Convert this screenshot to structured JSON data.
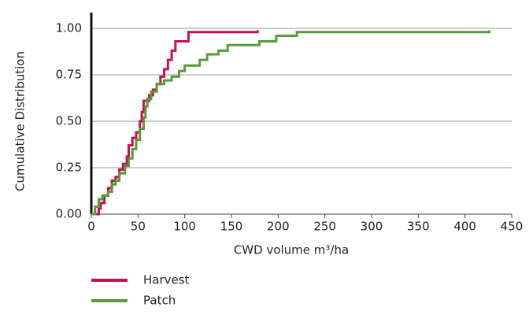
{
  "chart_data": {
    "type": "step",
    "xlabel": "CWD volume m³/ha",
    "ylabel": "Cumulative Distribution",
    "xlim": [
      0,
      450
    ],
    "ylim": [
      0,
      1
    ],
    "xticks": [
      0,
      50,
      100,
      150,
      200,
      250,
      300,
      350,
      400,
      450
    ],
    "yticks": [
      {
        "value": 0,
        "label": "0.00"
      },
      {
        "value": 0.25,
        "label": "0.25"
      },
      {
        "value": 0.5,
        "label": "0.50"
      },
      {
        "value": 0.75,
        "label": "0.75"
      },
      {
        "value": 1,
        "label": "1.00"
      }
    ],
    "grid": true,
    "legend": "bottom-left",
    "series": [
      {
        "name": "Harvest",
        "color": "#c8104e",
        "x": [
          2,
          8,
          10,
          14,
          18,
          22,
          26,
          30,
          34,
          38,
          40,
          44,
          48,
          52,
          54,
          56,
          62,
          66,
          70,
          74,
          78,
          82,
          86,
          90,
          104,
          178
        ],
        "values": [
          0,
          0.03,
          0.06,
          0.1,
          0.14,
          0.18,
          0.2,
          0.24,
          0.27,
          0.31,
          0.37,
          0.41,
          0.44,
          0.5,
          0.55,
          0.61,
          0.64,
          0.67,
          0.7,
          0.74,
          0.78,
          0.83,
          0.88,
          0.93,
          0.98,
          0.99
        ]
      },
      {
        "name": "Patch",
        "color": "#5a9a3c",
        "x": [
          0,
          4,
          8,
          12,
          18,
          22,
          26,
          30,
          36,
          40,
          44,
          48,
          52,
          56,
          58,
          60,
          64,
          70,
          78,
          86,
          94,
          100,
          116,
          124,
          136,
          146,
          180,
          198,
          220,
          426
        ],
        "values": [
          0,
          0.04,
          0.08,
          0.1,
          0.12,
          0.16,
          0.18,
          0.22,
          0.26,
          0.3,
          0.35,
          0.4,
          0.46,
          0.52,
          0.58,
          0.62,
          0.66,
          0.7,
          0.72,
          0.74,
          0.77,
          0.8,
          0.83,
          0.86,
          0.88,
          0.91,
          0.93,
          0.96,
          0.98,
          0.99
        ]
      }
    ]
  }
}
